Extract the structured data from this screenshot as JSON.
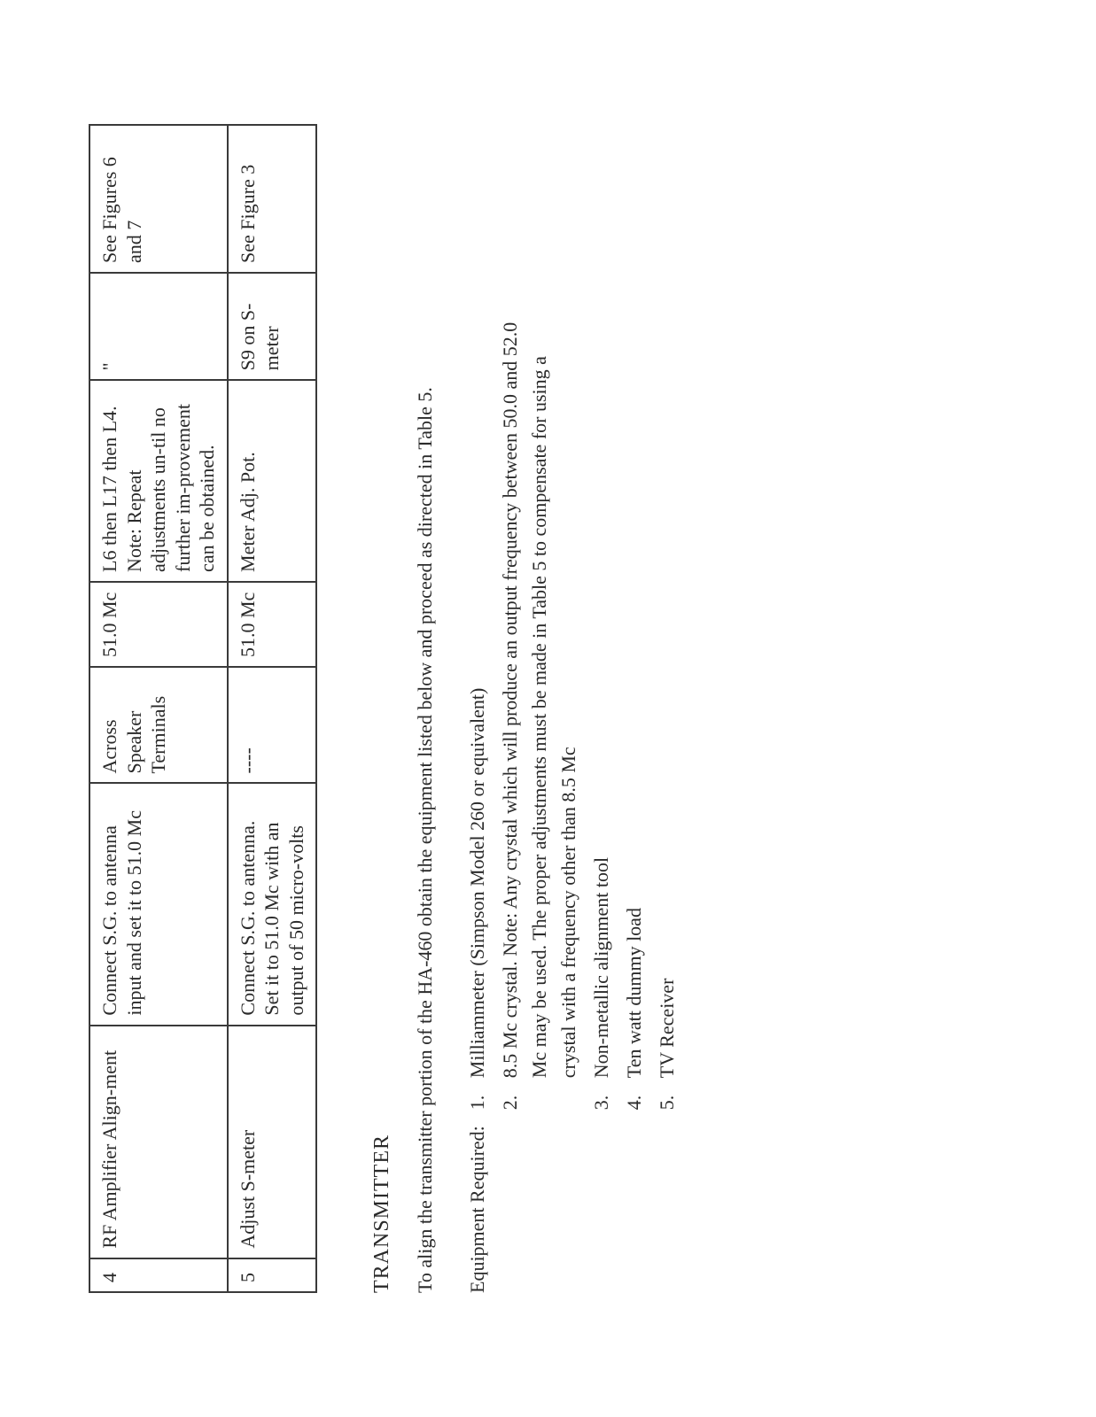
{
  "table": {
    "rows": [
      {
        "step": "4",
        "col_a": "RF Amplifier Align-ment",
        "col_b": "Connect S.G. to antenna input and set it to 51.0 Mc",
        "col_c": "Across Speaker Terminals",
        "col_d": "51.0 Mc",
        "col_e": "L6 then L17 then L4. Note: Repeat adjustments un-til no further im-provement can be obtained.",
        "col_f": "\"",
        "col_g": "See Figures 6 and 7"
      },
      {
        "step": "5",
        "col_a": "Adjust S-meter",
        "col_b": "Connect S.G. to antenna. Set it to 51.0 Mc with an output of 50 micro-volts",
        "col_c": "----",
        "col_d": "51.0 Mc",
        "col_e": "Meter Adj. Pot.",
        "col_f": "S9 on S-meter",
        "col_g": "See Figure 3"
      }
    ]
  },
  "section": {
    "heading": "TRANSMITTER",
    "lead": "To align the transmitter portion of the HA-460 obtain the equipment listed below and proceed as directed in Table 5.",
    "equip_label": "Equipment Required:",
    "items": [
      {
        "num": "1.",
        "txt": "Milliammeter (Simpson Model 260 or equivalent)"
      },
      {
        "num": "2.",
        "txt": "8.5 Mc crystal.  Note: Any crystal which will produce an output frequency between 50.0 and 52.0 Mc may be used. The proper adjustments must be made in Table 5 to compensate for using a crystal with a frequency other than 8.5 Mc"
      },
      {
        "num": "3.",
        "txt": "Non-metallic alignment tool"
      },
      {
        "num": "4.",
        "txt": "Ten watt dummy load"
      },
      {
        "num": "5.",
        "txt": "TV Receiver"
      }
    ]
  }
}
